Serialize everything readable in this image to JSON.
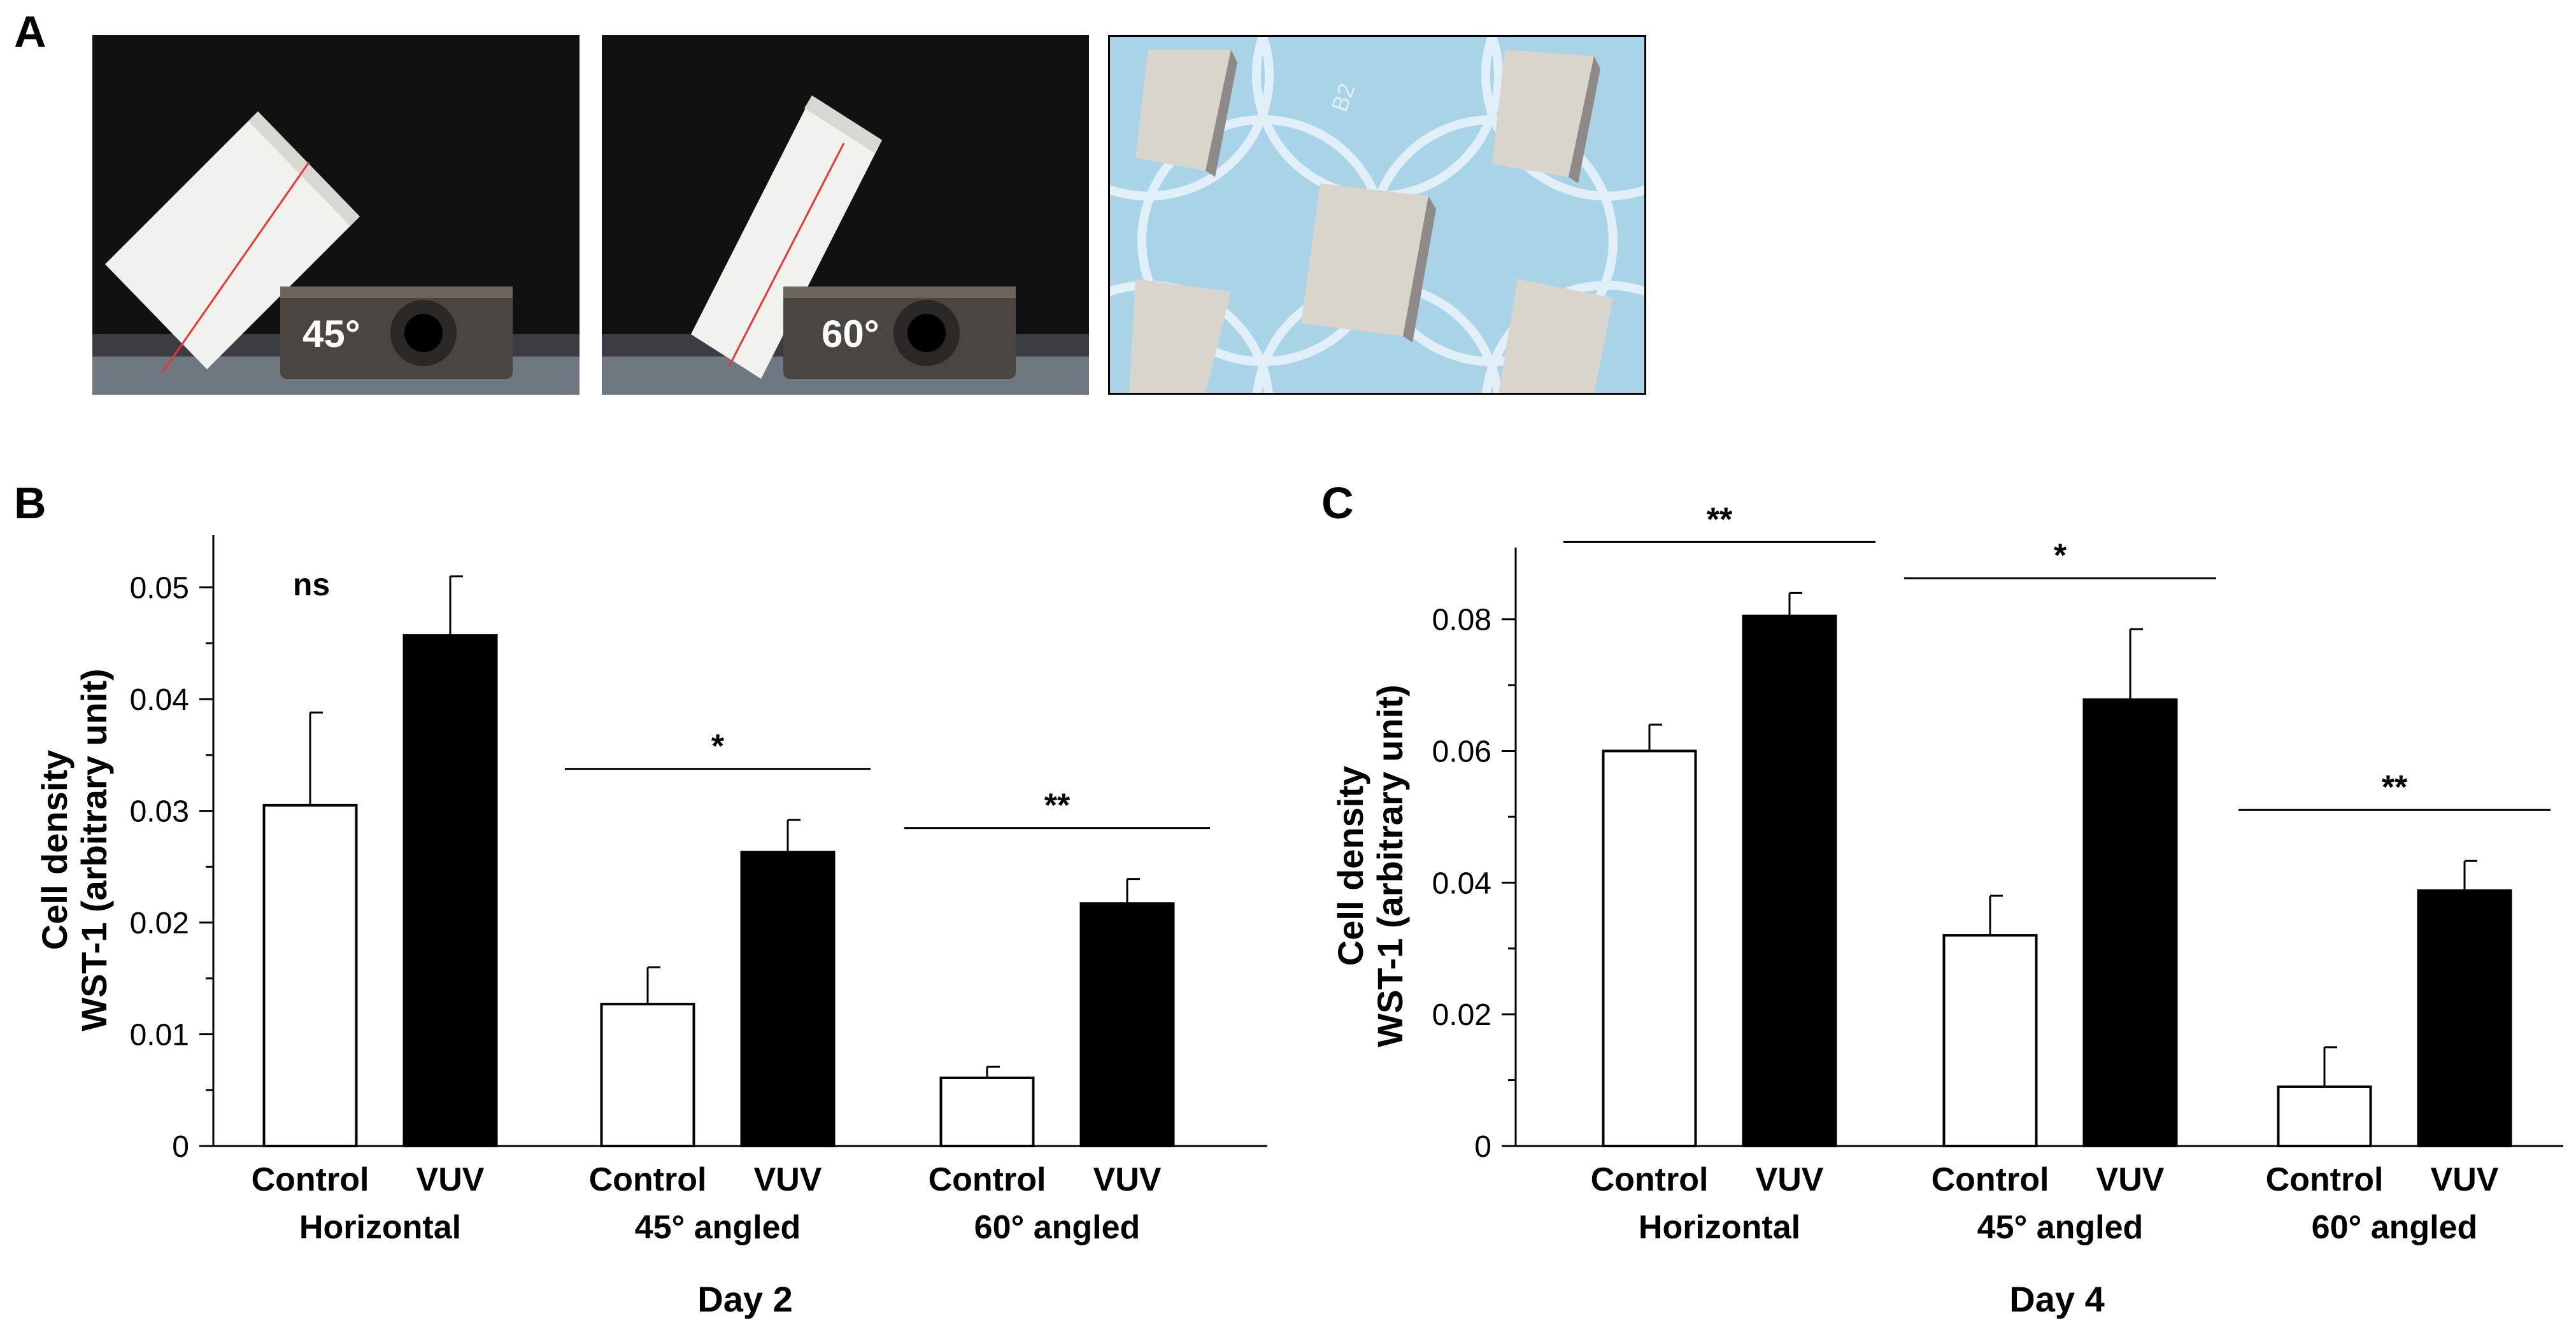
{
  "panel_letters": {
    "a": "A",
    "b": "B",
    "c": "C"
  },
  "photos": {
    "photo1_angle": "45°",
    "photo2_angle": "60°",
    "photo3_well_label": "B2"
  },
  "colors": {
    "control": "#ffffff",
    "vuv": "#000000",
    "photo_bg": "#111111",
    "dish_bg": "#a9d3e6"
  },
  "chart_data": [
    {
      "type": "bar",
      "panel": "B",
      "ylabel": "Cell density\nWST-1 (arbitrary unit)",
      "ylabel_lines": [
        "Cell density",
        "WST-1 (arbitrary unit)"
      ],
      "xlabel": "Day 2",
      "ylim": [
        0,
        0.053
      ],
      "yticks": [
        0,
        0.01,
        0.02,
        0.03,
        0.04,
        0.05
      ],
      "ytick_labels": [
        "0",
        "0.01",
        "0.02",
        "0.03",
        "0.04",
        "0.05"
      ],
      "groups": [
        "Horizontal",
        "45° angled",
        "60° angled"
      ],
      "series": [
        {
          "name": "Control",
          "values": [
            0.0305,
            0.0127,
            0.0061
          ],
          "errors": [
            0.0083,
            0.0033,
            0.001
          ]
        },
        {
          "name": "VUV",
          "values": [
            0.0457,
            0.0263,
            0.0217
          ],
          "errors": [
            0.0053,
            0.0029,
            0.0022
          ]
        }
      ],
      "significance": [
        "ns",
        "*",
        "**"
      ],
      "significance_bar": [
        false,
        true,
        true
      ]
    },
    {
      "type": "bar",
      "panel": "C",
      "ylabel": "Cell density\nWST-1 (arbitrary unit)",
      "ylabel_lines": [
        "Cell density",
        "WST-1 (arbitrary unit)"
      ],
      "xlabel": "Day 4",
      "ylim": [
        0,
        0.088
      ],
      "yticks": [
        0,
        0.02,
        0.04,
        0.06,
        0.08
      ],
      "ytick_labels": [
        "0",
        "0.02",
        "0.04",
        "0.06",
        "0.08"
      ],
      "groups": [
        "Horizontal",
        "45° angled",
        "60° angled"
      ],
      "series": [
        {
          "name": "Control",
          "values": [
            0.06,
            0.032,
            0.009
          ],
          "errors": [
            0.004,
            0.006,
            0.006
          ]
        },
        {
          "name": "VUV",
          "values": [
            0.0805,
            0.0678,
            0.0388
          ],
          "errors": [
            0.0035,
            0.0107,
            0.0045
          ]
        }
      ],
      "significance": [
        "**",
        "*",
        "**"
      ],
      "significance_bar": [
        true,
        true,
        true
      ]
    }
  ]
}
